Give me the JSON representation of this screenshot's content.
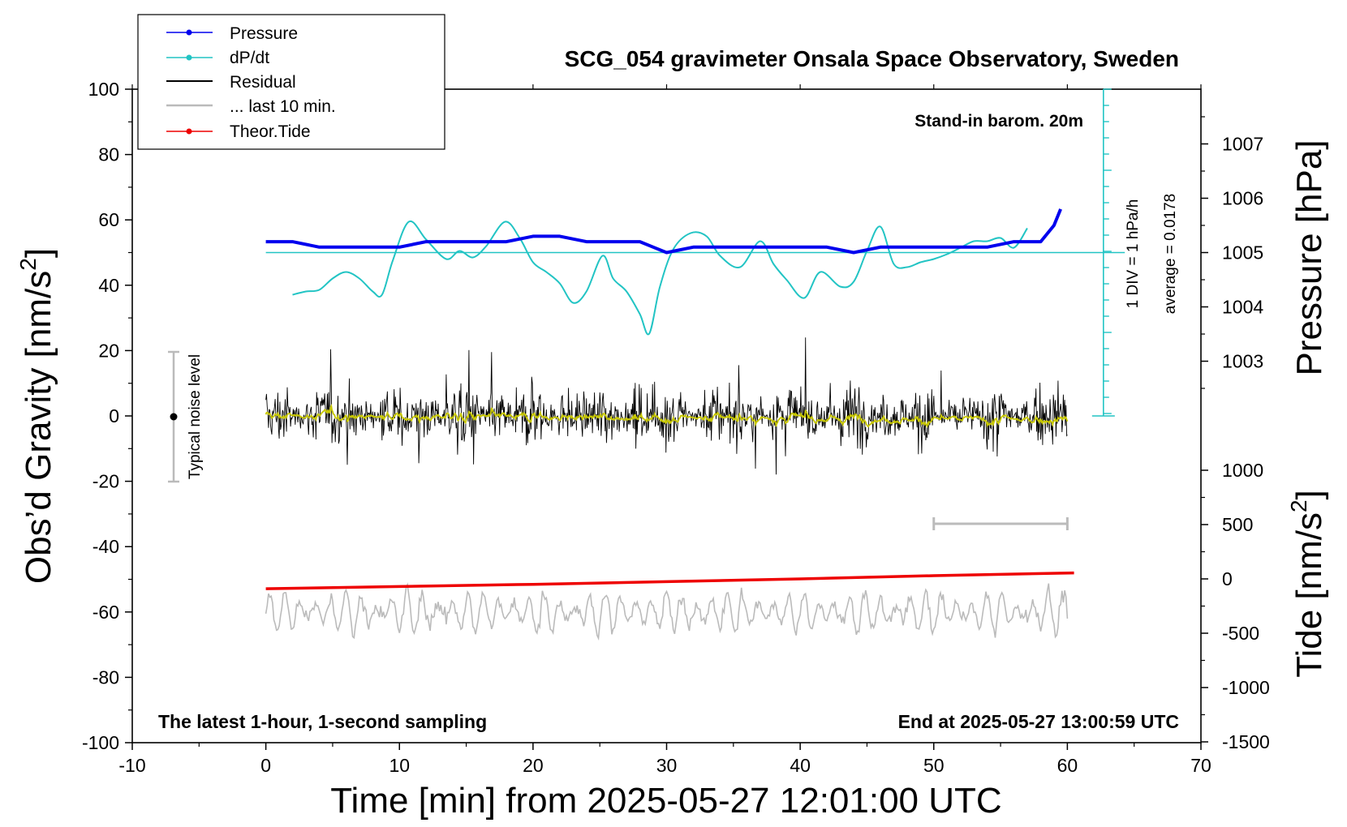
{
  "chart_data": {
    "type": "line",
    "title": "SCG_054 gravimeter Onsala Space Observatory, Sweden",
    "xlabel": "Time [min] from 2025-05-27 12:01:00 UTC",
    "ylabel": "Obs’d Gravity [nm/s²]",
    "ylabel_right_top": "Pressure [hPa]",
    "ylabel_right_bottom": "Tide [nm/s²]",
    "xlim": [
      -10,
      70
    ],
    "ylim": [
      -100,
      100
    ],
    "x_ticks": [
      -10,
      0,
      10,
      20,
      30,
      40,
      50,
      60,
      70
    ],
    "y_ticks": [
      100,
      80,
      60,
      40,
      20,
      0,
      -20,
      -40,
      -60,
      -80,
      -100
    ],
    "pressure_axis": {
      "ticks": [
        1003,
        1004,
        1005,
        1006,
        1007
      ]
    },
    "tide_axis": {
      "ticks": [
        1000,
        500,
        0,
        -500,
        -1000,
        -1500
      ]
    },
    "grid": false,
    "legend_position": "top-left",
    "legend": [
      "Pressure",
      "dP/dt",
      "Residual",
      "... last 10 min.",
      "Theor.Tide"
    ],
    "annotations": {
      "barometer": "Stand-in barom. 20m",
      "div": "1 DIV = 1 hPa/h",
      "average": "average = 0.0178",
      "noise": "Typical noise level",
      "bottom_left": "The latest 1-hour, 1-second sampling",
      "bottom_right": "End at 2025-05-27 13:00:59 UTC"
    },
    "colors": {
      "pressure": "#0000ee",
      "dpdt": "#22c4c4",
      "residual": "#000000",
      "residual_smooth": "#c8c800",
      "last10": "#bbbbbb",
      "tide": "#ee0000"
    },
    "series": [
      {
        "name": "Pressure",
        "unit": "hPa",
        "x": [
          0,
          2,
          4,
          6,
          8,
          10,
          12,
          14,
          16,
          18,
          20,
          22,
          24,
          26,
          28,
          29,
          30,
          32,
          34,
          36,
          38,
          40,
          42,
          44,
          46,
          48,
          50,
          52,
          54,
          56,
          57,
          58,
          59,
          59.5
        ],
        "y": [
          1005.2,
          1005.2,
          1005.1,
          1005.1,
          1005.1,
          1005.1,
          1005.2,
          1005.2,
          1005.2,
          1005.2,
          1005.3,
          1005.3,
          1005.2,
          1005.2,
          1005.2,
          1005.1,
          1005.0,
          1005.1,
          1005.1,
          1005.1,
          1005.1,
          1005.1,
          1005.1,
          1005.0,
          1005.1,
          1005.1,
          1005.1,
          1005.1,
          1005.1,
          1005.2,
          1005.2,
          1005.2,
          1005.5,
          1005.8
        ]
      },
      {
        "name": "dP/dt",
        "unit": "hPa/h",
        "x": [
          2,
          3,
          4,
          5,
          6,
          7,
          8,
          8.7,
          9.5,
          10.7,
          12,
          13.5,
          14.5,
          15.5,
          16.5,
          17.9,
          19,
          20,
          21,
          22,
          23,
          24,
          25.2,
          26,
          27,
          28,
          28.7,
          29.5,
          30.5,
          31.8,
          33,
          34,
          35.5,
          37,
          38,
          39,
          40.3,
          41.5,
          43,
          44,
          45,
          46,
          47,
          48,
          49,
          50,
          51,
          52,
          53,
          54,
          55,
          56,
          57
        ],
        "y": [
          -2.6,
          -2.4,
          -2.3,
          -1.6,
          -1.2,
          -1.6,
          -2.4,
          -2.6,
          -0.5,
          1.9,
          0.8,
          -0.4,
          0.1,
          -0.3,
          0.4,
          1.9,
          0.9,
          -0.6,
          -1.2,
          -1.9,
          -3.1,
          -2.4,
          -0.2,
          -1.6,
          -2.4,
          -3.8,
          -5.0,
          -2.1,
          0.2,
          1.2,
          1.0,
          -0.2,
          -0.9,
          0.7,
          -0.7,
          -1.7,
          -2.8,
          -1.2,
          -2.1,
          -1.8,
          0.1,
          1.6,
          -0.7,
          -0.9,
          -0.6,
          -0.4,
          -0.1,
          0.3,
          0.7,
          0.7,
          0.9,
          0.3,
          1.5
        ]
      },
      {
        "name": "Residual",
        "unit": "nm/s²",
        "x": [
          0,
          60
        ],
        "y": [
          0,
          0
        ]
      },
      {
        "name": "... last 10 min.",
        "unit": "nm/s²",
        "x": [
          50,
          60
        ],
        "y": [
          -33,
          -33
        ]
      },
      {
        "name": "Theor.Tide",
        "unit": "nm/s²",
        "x": [
          0,
          10,
          20,
          30,
          40,
          50,
          60.5
        ],
        "y": [
          -90,
          -70,
          -50,
          -25,
          0,
          30,
          55
        ]
      }
    ]
  }
}
